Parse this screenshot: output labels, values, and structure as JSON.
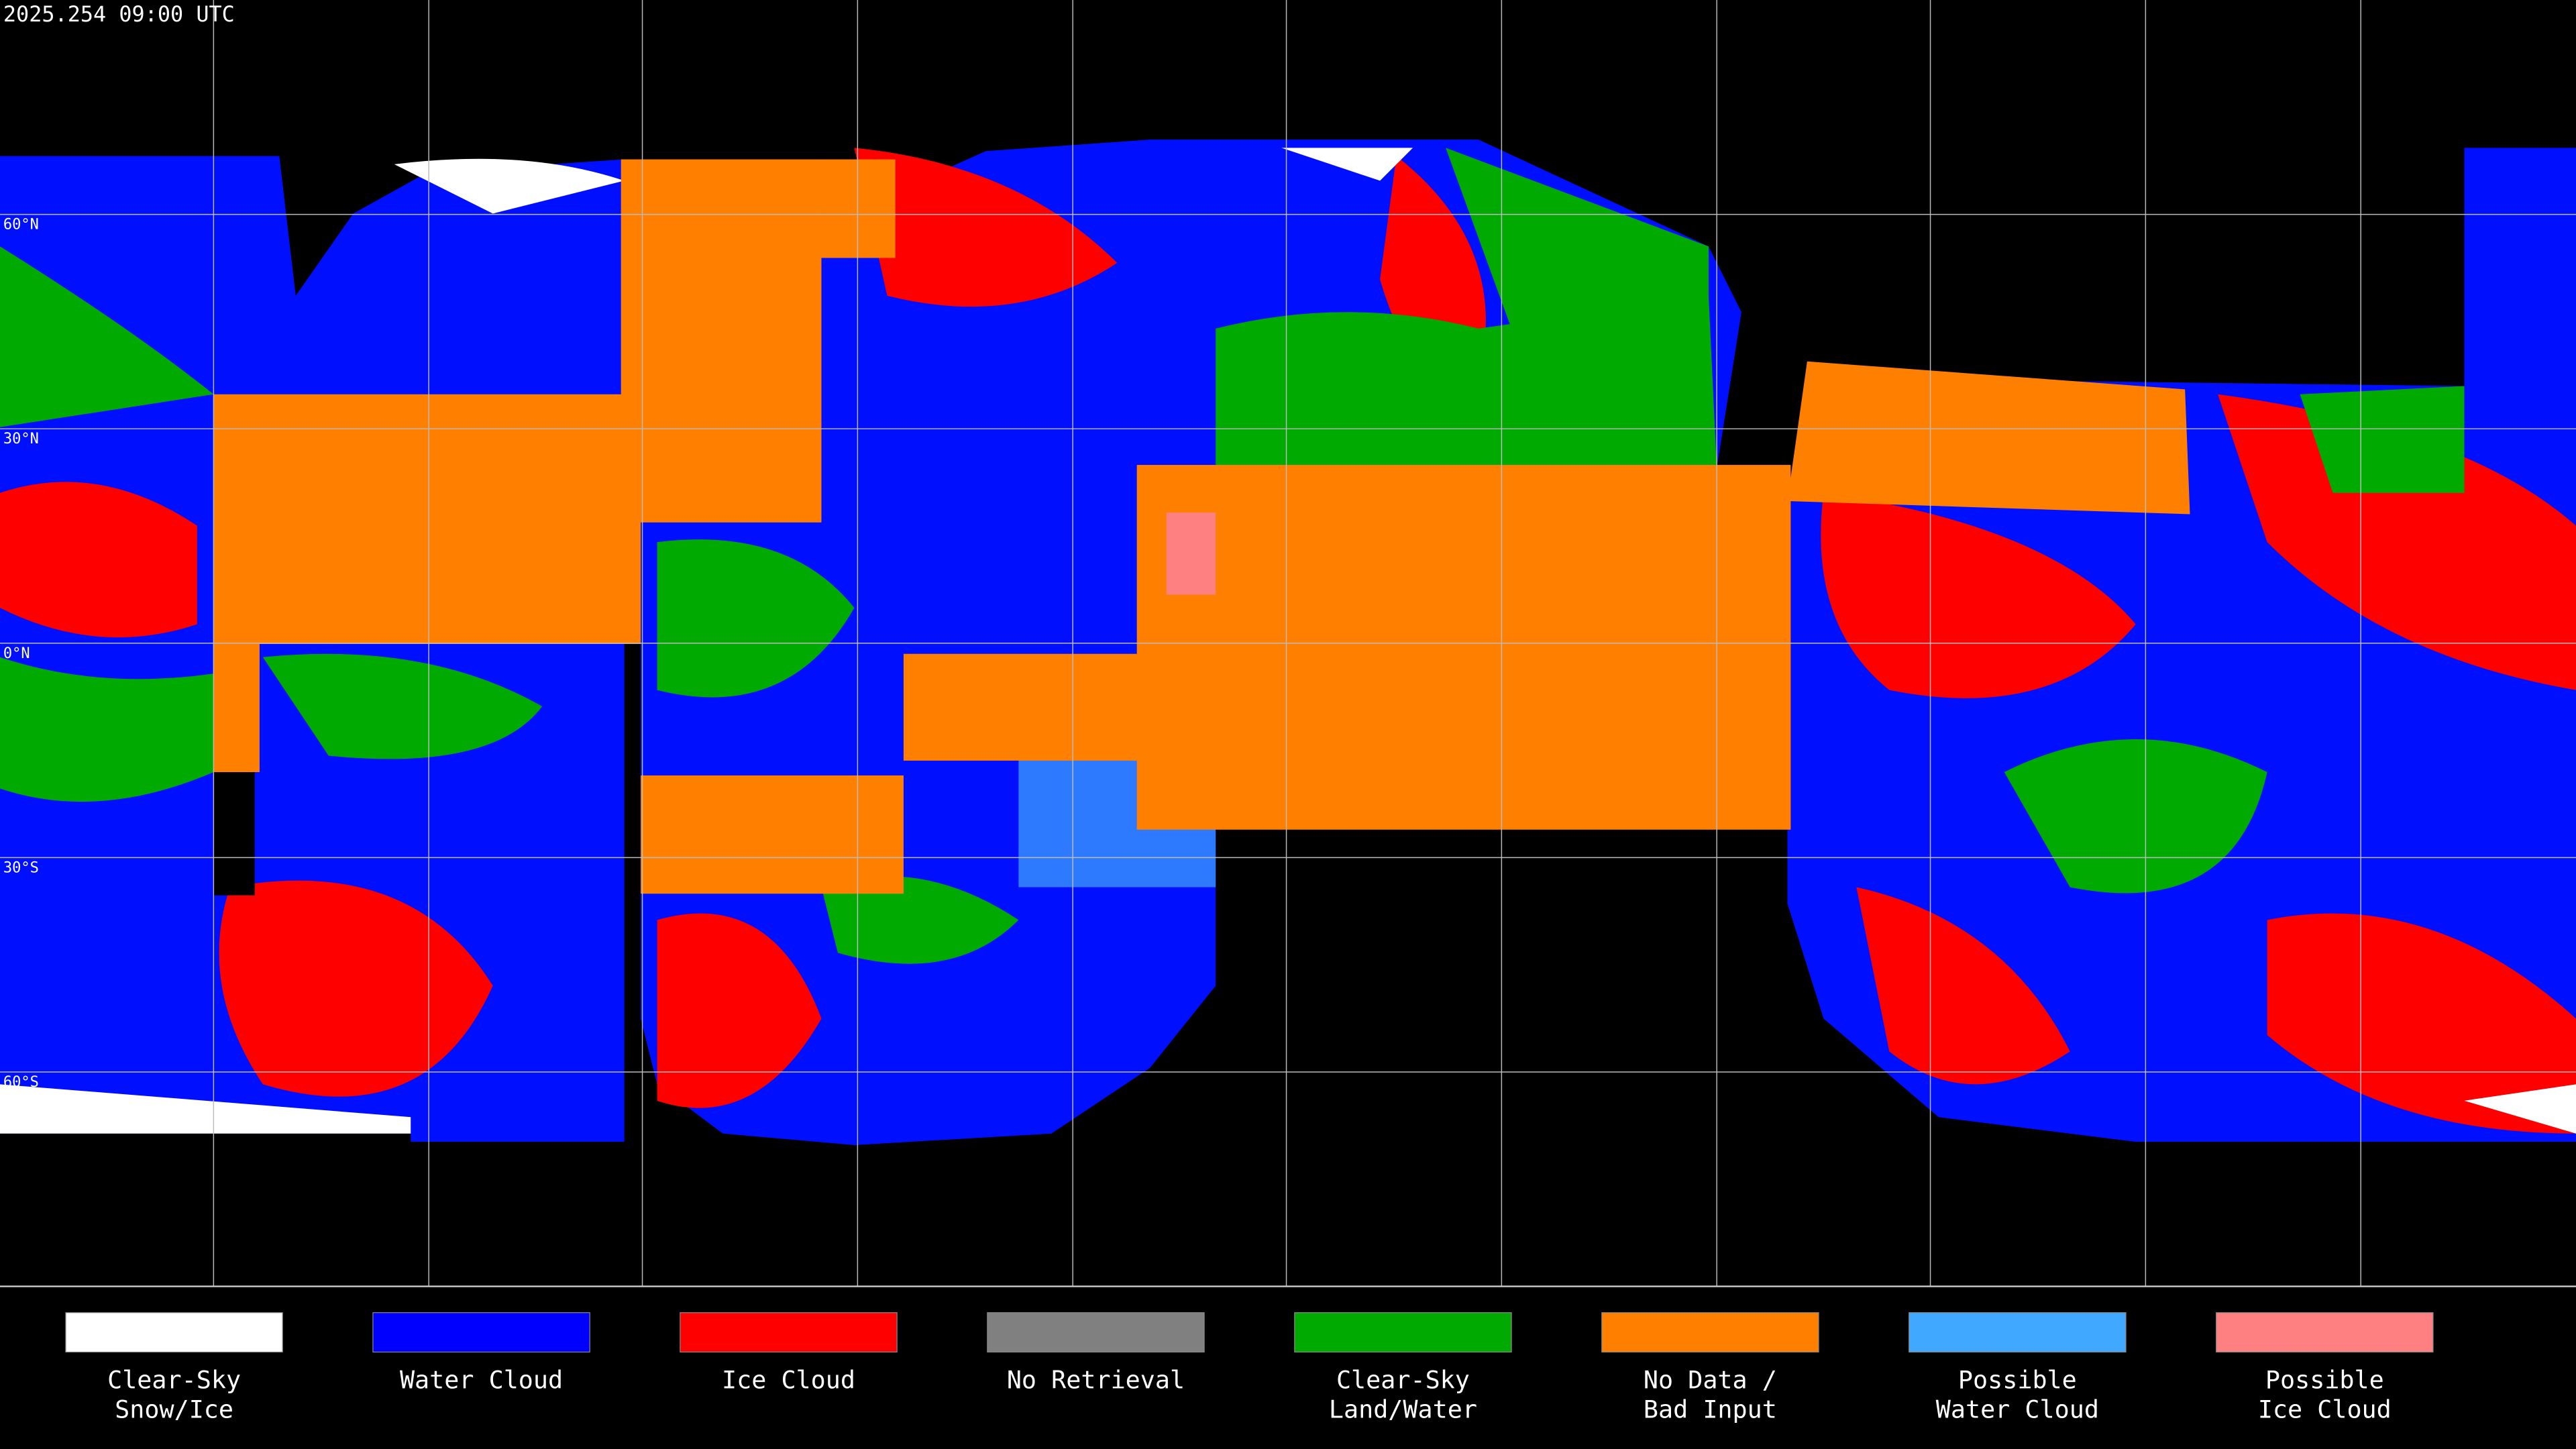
{
  "header": {
    "title": "2025.254 09:00 UTC"
  },
  "map": {
    "lat_labels": [
      {
        "label": "60°N",
        "lat": 60
      },
      {
        "label": "30°N",
        "lat": 30
      },
      {
        "label": "0°N",
        "lat": 0
      },
      {
        "label": "30°S",
        "lat": -30
      },
      {
        "label": "60°S",
        "lat": -60
      }
    ]
  },
  "legend": {
    "items": [
      {
        "lines": [
          "Clear-Sky",
          "Snow/Ice"
        ],
        "color": "#ffffff"
      },
      {
        "lines": [
          "Water Cloud"
        ],
        "color": "#0000ff"
      },
      {
        "lines": [
          "Ice Cloud"
        ],
        "color": "#ff0000"
      },
      {
        "lines": [
          "No Retrieval"
        ],
        "color": "#808080"
      },
      {
        "lines": [
          "Clear-Sky",
          "Land/Water"
        ],
        "color": "#00aa00"
      },
      {
        "lines": [
          "No Data /",
          "Bad Input"
        ],
        "color": "#ff8000"
      },
      {
        "lines": [
          "Possible",
          "Water Cloud"
        ],
        "color": "#40a8ff"
      },
      {
        "lines": [
          "Possible",
          "Ice Cloud"
        ],
        "color": "#ff8080"
      }
    ]
  }
}
